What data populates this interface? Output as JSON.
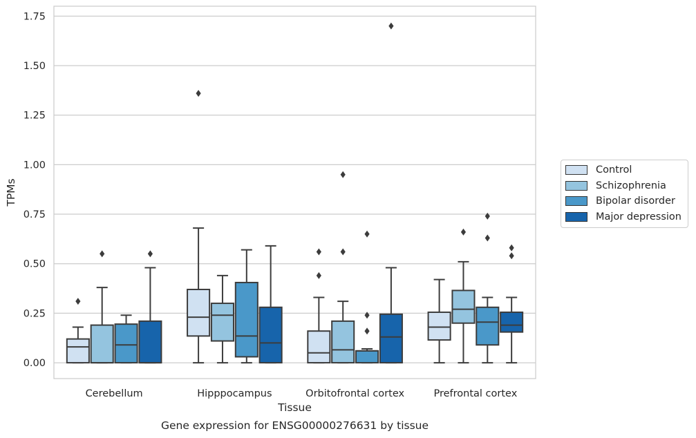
{
  "chart_data": {
    "type": "box",
    "title": "Gene expression for ENSG00000276631 by tissue",
    "xlabel": "Tissue",
    "ylabel": "TPMs",
    "ylim": [
      -0.08,
      1.8
    ],
    "yticks": [
      0.0,
      0.25,
      0.5,
      0.75,
      1.0,
      1.25,
      1.5,
      1.75
    ],
    "ytick_labels": [
      "0.00",
      "0.25",
      "0.50",
      "0.75",
      "1.00",
      "1.25",
      "1.50",
      "1.75"
    ],
    "grid": "horizontal",
    "legend_position": "right",
    "categories": [
      "Cerebellum",
      "Hipppocampus",
      "Orbitofrontal cortex",
      "Prefrontal cortex"
    ],
    "series": [
      {
        "name": "Control",
        "color": "#d0e1f2",
        "boxes": [
          {
            "whislo": 0.0,
            "q1": 0.0,
            "med": 0.08,
            "q3": 0.12,
            "whishi": 0.18,
            "fliers": [
              0.31
            ]
          },
          {
            "whislo": 0.0,
            "q1": 0.135,
            "med": 0.23,
            "q3": 0.37,
            "whishi": 0.68,
            "fliers": [
              1.36
            ]
          },
          {
            "whislo": 0.0,
            "q1": 0.0,
            "med": 0.05,
            "q3": 0.16,
            "whishi": 0.33,
            "fliers": [
              0.44,
              0.56
            ]
          },
          {
            "whislo": 0.0,
            "q1": 0.115,
            "med": 0.18,
            "q3": 0.255,
            "whishi": 0.42,
            "fliers": []
          }
        ]
      },
      {
        "name": "Schizophrenia",
        "color": "#94c4df",
        "boxes": [
          {
            "whislo": 0.0,
            "q1": 0.0,
            "med": 0.0,
            "q3": 0.19,
            "whishi": 0.38,
            "fliers": [
              0.55
            ]
          },
          {
            "whislo": 0.0,
            "q1": 0.11,
            "med": 0.24,
            "q3": 0.3,
            "whishi": 0.44,
            "fliers": []
          },
          {
            "whislo": 0.0,
            "q1": 0.0,
            "med": 0.065,
            "q3": 0.21,
            "whishi": 0.31,
            "fliers": [
              0.56,
              0.95
            ]
          },
          {
            "whislo": 0.0,
            "q1": 0.2,
            "med": 0.27,
            "q3": 0.365,
            "whishi": 0.51,
            "fliers": [
              0.66
            ]
          }
        ]
      },
      {
        "name": "Bipolar disorder",
        "color": "#4a98c9",
        "boxes": [
          {
            "whislo": 0.0,
            "q1": 0.0,
            "med": 0.09,
            "q3": 0.195,
            "whishi": 0.24,
            "fliers": []
          },
          {
            "whislo": 0.0,
            "q1": 0.03,
            "med": 0.135,
            "q3": 0.405,
            "whishi": 0.57,
            "fliers": []
          },
          {
            "whislo": 0.0,
            "q1": 0.0,
            "med": 0.06,
            "q3": 0.06,
            "whishi": 0.07,
            "fliers": [
              0.16,
              0.24,
              0.65
            ]
          },
          {
            "whislo": 0.0,
            "q1": 0.09,
            "med": 0.205,
            "q3": 0.28,
            "whishi": 0.33,
            "fliers": [
              0.63,
              0.74
            ]
          }
        ]
      },
      {
        "name": "Major depression",
        "color": "#1764ab",
        "boxes": [
          {
            "whislo": 0.0,
            "q1": 0.0,
            "med": 0.0,
            "q3": 0.21,
            "whishi": 0.48,
            "fliers": [
              0.55
            ]
          },
          {
            "whislo": 0.0,
            "q1": 0.0,
            "med": 0.1,
            "q3": 0.28,
            "whishi": 0.59,
            "fliers": []
          },
          {
            "whislo": 0.0,
            "q1": 0.0,
            "med": 0.13,
            "q3": 0.245,
            "whishi": 0.48,
            "fliers": [
              1.7
            ]
          },
          {
            "whislo": 0.0,
            "q1": 0.155,
            "med": 0.19,
            "q3": 0.255,
            "whishi": 0.33,
            "fliers": [
              0.54,
              0.58
            ]
          }
        ]
      }
    ]
  }
}
